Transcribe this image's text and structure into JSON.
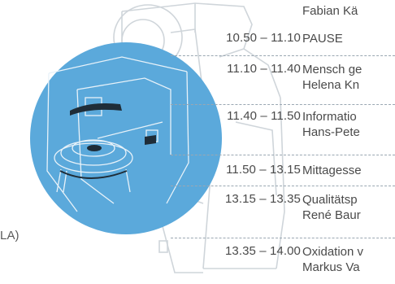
{
  "continuation_text": "Fabian Kä",
  "left_cut_text": "LA)",
  "schedule": [
    {
      "time": "10.50 – 11.10",
      "lines": [
        "PAUSE"
      ]
    },
    {
      "time": "11.10 – 11.40",
      "lines": [
        "Mensch ge",
        "Helena Kn"
      ]
    },
    {
      "time": "11.40 – 11.50",
      "lines": [
        "Informatio",
        "Hans-Pete"
      ]
    },
    {
      "time": "11.50 – 13.15",
      "lines": [
        "Mittagesse"
      ]
    },
    {
      "time": "13.15 – 13.35",
      "lines": [
        "Qualitätsp",
        "René Baur"
      ]
    },
    {
      "time": "13.35 – 14.00",
      "lines": [
        "Oxidation v",
        "Markus Va"
      ]
    }
  ],
  "colors": {
    "circle_fill": "#5ba9db",
    "text": "#4a4a4a",
    "separator": "#9aa7b2",
    "sketch_lines": "#c8ced4"
  }
}
